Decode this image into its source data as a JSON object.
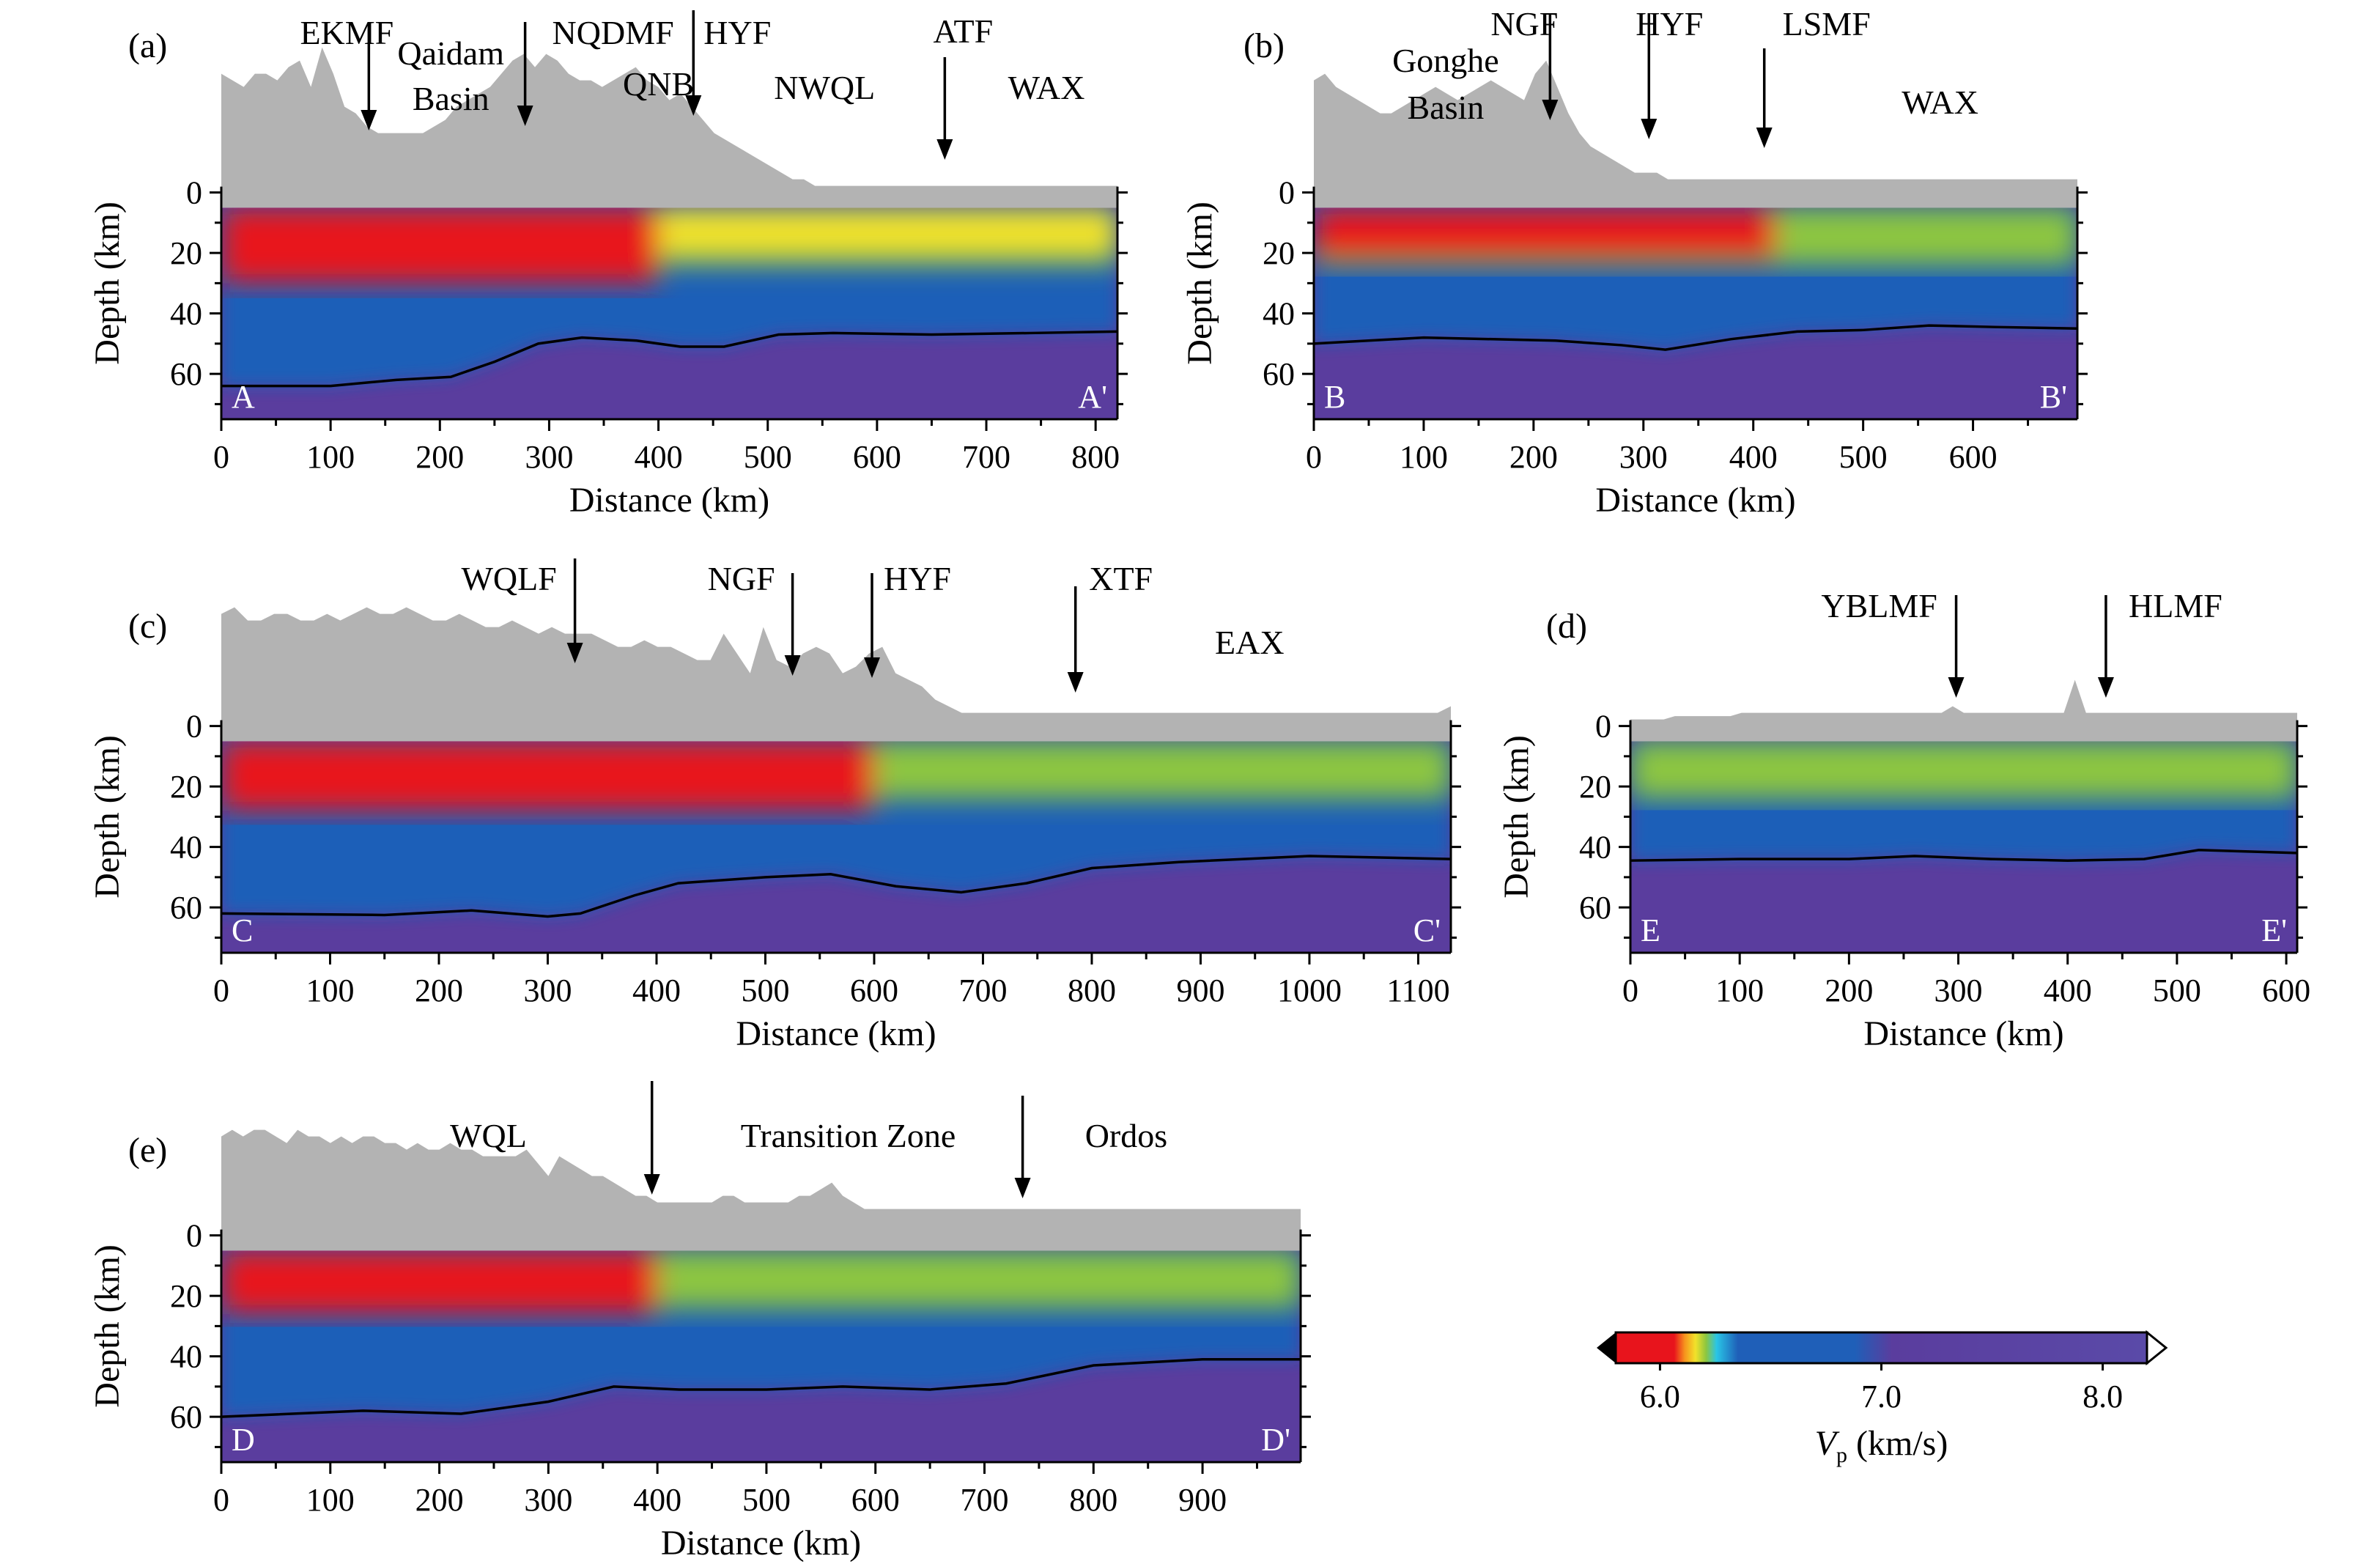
{
  "panels": [
    {
      "id": "a",
      "label": "(a)",
      "ylabel": "Depth (km)",
      "xlabel": "Distance (km)",
      "xmax": 820,
      "xticks": [
        0,
        100,
        200,
        300,
        400,
        500,
        600,
        700,
        800
      ],
      "yticks": [
        0,
        20,
        40,
        60
      ],
      "start": "A",
      "end": "A'",
      "topo": [
        18,
        17,
        16,
        18,
        18,
        17,
        19,
        20,
        16,
        22,
        18,
        13,
        12,
        10,
        9,
        9,
        9,
        9,
        9,
        10,
        11,
        13,
        14,
        15,
        16,
        18,
        20,
        21,
        19,
        21,
        20,
        18,
        17,
        17,
        16,
        17,
        18,
        19,
        17,
        16,
        14,
        15,
        13,
        11,
        9,
        8,
        7,
        6,
        5,
        4,
        3,
        2,
        2,
        1,
        1,
        1,
        1,
        1,
        1,
        1,
        1,
        1,
        1,
        1,
        1,
        1,
        1,
        1,
        1,
        1,
        1,
        1,
        1,
        1,
        1,
        1,
        1,
        1,
        1,
        1,
        1
      ],
      "moho": [
        [
          0,
          64
        ],
        [
          100,
          64
        ],
        [
          160,
          62
        ],
        [
          210,
          61
        ],
        [
          250,
          56
        ],
        [
          290,
          50
        ],
        [
          330,
          48
        ],
        [
          380,
          49
        ],
        [
          420,
          51
        ],
        [
          460,
          51
        ],
        [
          510,
          47
        ],
        [
          560,
          46.5
        ],
        [
          650,
          47
        ],
        [
          740,
          46.5
        ],
        [
          820,
          46
        ]
      ],
      "velocity_features": [
        {
          "x": [
            0,
            400
          ],
          "z": [
            5,
            30
          ],
          "vp": 6.0
        },
        {
          "x": [
            400,
            820
          ],
          "z": [
            5,
            20
          ],
          "vp": 6.2
        },
        {
          "x": [
            0,
            820
          ],
          "z": [
            30,
            48
          ],
          "vp": 6.6
        },
        {
          "x": [
            0,
            820
          ],
          "z": [
            48,
            70
          ],
          "vp": 7.6
        }
      ],
      "annotations": [
        {
          "text": "EKMF",
          "x": 135,
          "arrow": true
        },
        {
          "text": "Qaidam",
          "x": 210,
          "arrow": false
        },
        {
          "text": "Basin",
          "x": 210,
          "arrow": false
        },
        {
          "text": "NQDMF",
          "x": 278,
          "arrow": true
        },
        {
          "text": "QNB",
          "x": 400,
          "arrow": false
        },
        {
          "text": "HYF",
          "x": 432,
          "arrow": true
        },
        {
          "text": "NWQL",
          "x": 552,
          "arrow": false
        },
        {
          "text": "ATF",
          "x": 662,
          "arrow": true
        },
        {
          "text": "WAX",
          "x": 755,
          "arrow": false
        }
      ]
    },
    {
      "id": "b",
      "label": "(b)",
      "ylabel": "Depth (km)",
      "xlabel": "Distance (km)",
      "xmax": 695,
      "xticks": [
        0,
        100,
        200,
        300,
        400,
        500,
        600
      ],
      "yticks": [
        0,
        20,
        40,
        60
      ],
      "start": "B",
      "end": "B'",
      "topo": [
        17,
        18,
        16,
        15,
        14,
        13,
        12,
        12,
        13,
        14,
        15,
        16,
        15,
        14,
        15,
        16,
        17,
        16,
        15,
        14,
        18,
        20,
        16,
        12,
        9,
        7,
        6,
        5,
        4,
        3,
        3,
        3,
        2,
        2,
        2,
        2,
        2,
        2,
        2,
        2,
        2,
        2,
        2,
        2,
        2,
        2,
        2,
        2,
        2,
        2,
        2,
        2,
        2,
        2,
        2,
        2,
        2,
        2,
        2,
        2,
        2,
        2,
        2,
        2,
        2,
        2,
        2,
        2,
        2,
        2
      ],
      "moho": [
        [
          0,
          50
        ],
        [
          100,
          48
        ],
        [
          220,
          49
        ],
        [
          280,
          50.5
        ],
        [
          320,
          52
        ],
        [
          380,
          48.5
        ],
        [
          440,
          46
        ],
        [
          500,
          45.5
        ],
        [
          560,
          44
        ],
        [
          620,
          44.5
        ],
        [
          695,
          45
        ]
      ],
      "velocity_features": [
        {
          "x": [
            0,
            420
          ],
          "z": [
            5,
            22
          ],
          "vp": 6.0
        },
        {
          "x": [
            0,
            695
          ],
          "z": [
            22,
            48
          ],
          "vp": 6.6
        },
        {
          "x": [
            0,
            695
          ],
          "z": [
            48,
            70
          ],
          "vp": 7.6
        }
      ],
      "annotations": [
        {
          "text": "NGF",
          "x": 215,
          "arrow": true
        },
        {
          "text": "Gonghe",
          "x": 120,
          "arrow": false
        },
        {
          "text": "Basin",
          "x": 120,
          "arrow": false
        },
        {
          "text": "HYF",
          "x": 305,
          "arrow": true
        },
        {
          "text": "LSMF",
          "x": 410,
          "arrow": true
        },
        {
          "text": "WAX",
          "x": 570,
          "arrow": false
        }
      ]
    },
    {
      "id": "c",
      "label": "(c)",
      "ylabel": "Depth (km)",
      "xlabel": "Distance (km)",
      "xmax": 1130,
      "xticks": [
        0,
        100,
        200,
        300,
        400,
        500,
        600,
        700,
        800,
        900,
        1000,
        1100
      ],
      "yticks": [
        0,
        20,
        40,
        60
      ],
      "start": "C",
      "end": "C'",
      "topo": [
        17,
        18,
        16,
        16,
        17,
        17,
        16,
        16,
        17,
        16,
        17,
        18,
        17,
        17,
        18,
        17,
        16,
        16,
        17,
        16,
        15,
        15,
        16,
        15,
        14,
        15,
        14,
        14,
        14,
        13,
        12,
        12,
        13,
        12,
        12,
        11,
        10,
        10,
        14,
        11,
        8,
        15,
        10,
        9,
        11,
        12,
        11,
        8,
        9,
        11,
        12,
        8,
        7,
        6,
        4,
        3,
        2,
        2,
        2,
        2,
        2,
        2,
        2,
        2,
        2,
        2,
        2,
        2,
        2,
        2,
        2,
        2,
        2,
        2,
        2,
        2,
        2,
        2,
        2,
        2,
        2,
        2,
        2,
        2,
        2,
        2,
        2,
        2,
        2,
        2,
        2,
        2,
        2,
        3
      ],
      "moho": [
        [
          0,
          62
        ],
        [
          150,
          62.5
        ],
        [
          230,
          61
        ],
        [
          300,
          63
        ],
        [
          330,
          62
        ],
        [
          380,
          56
        ],
        [
          420,
          52
        ],
        [
          500,
          50
        ],
        [
          560,
          49
        ],
        [
          620,
          53
        ],
        [
          680,
          55
        ],
        [
          740,
          52
        ],
        [
          800,
          47
        ],
        [
          880,
          45
        ],
        [
          1000,
          43
        ],
        [
          1130,
          44
        ]
      ],
      "velocity_features": [
        {
          "x": [
            0,
            600
          ],
          "z": [
            5,
            28
          ],
          "vp": 6.0
        },
        {
          "x": [
            0,
            1130
          ],
          "z": [
            28,
            50
          ],
          "vp": 6.6
        },
        {
          "x": [
            0,
            1130
          ],
          "z": [
            50,
            70
          ],
          "vp": 7.6
        }
      ],
      "annotations": [
        {
          "text": "WQLF",
          "x": 325,
          "arrow": true
        },
        {
          "text": "NGF",
          "x": 525,
          "arrow": true
        },
        {
          "text": "HYF",
          "x": 598,
          "arrow": true
        },
        {
          "text": "XTF",
          "x": 785,
          "arrow": true
        },
        {
          "text": "EAX",
          "x": 945,
          "arrow": false
        }
      ]
    },
    {
      "id": "d",
      "label": "(d)",
      "ylabel": "Depth (km)",
      "xlabel": "Distance (km)",
      "xmax": 610,
      "xticks": [
        0,
        100,
        200,
        300,
        400,
        500,
        600
      ],
      "yticks": [
        0,
        20,
        40,
        60
      ],
      "start": "E",
      "end": "E'",
      "topo": [
        1,
        1,
        1,
        1,
        1.5,
        1.5,
        1.5,
        1.5,
        1.5,
        1.5,
        2,
        2,
        2,
        2,
        2,
        2,
        2,
        2,
        2,
        2,
        2,
        2,
        2,
        2,
        2,
        2,
        2,
        2,
        2,
        3,
        2,
        2,
        2,
        2,
        2,
        2,
        2,
        2,
        2,
        2,
        7,
        2,
        2,
        2,
        2,
        2,
        2,
        2,
        2,
        2,
        2,
        2,
        2,
        2,
        2,
        2,
        2,
        2,
        2,
        2,
        2
      ],
      "moho": [
        [
          0,
          44.5
        ],
        [
          100,
          44
        ],
        [
          200,
          44
        ],
        [
          260,
          43
        ],
        [
          330,
          44
        ],
        [
          400,
          44.5
        ],
        [
          470,
          44
        ],
        [
          520,
          41
        ],
        [
          610,
          42
        ]
      ],
      "velocity_features": [
        {
          "x": [
            0,
            610
          ],
          "z": [
            5,
            20
          ],
          "vp": 6.3
        },
        {
          "x": [
            0,
            610
          ],
          "z": [
            20,
            44
          ],
          "vp": 6.6
        },
        {
          "x": [
            0,
            610
          ],
          "z": [
            44,
            70
          ],
          "vp": 7.6
        }
      ],
      "annotations": [
        {
          "text": "YBLMF",
          "x": 298,
          "arrow": true
        },
        {
          "text": "HLMF",
          "x": 435,
          "arrow": true
        }
      ]
    },
    {
      "id": "e",
      "label": "(e)",
      "ylabel": "Depth (km)",
      "xlabel": "Distance (km)",
      "xmax": 990,
      "xticks": [
        0,
        100,
        200,
        300,
        400,
        500,
        600,
        700,
        800,
        900
      ],
      "yticks": [
        0,
        20,
        40,
        60
      ],
      "start": "D",
      "end": "D'",
      "topo": [
        15,
        16,
        15,
        16,
        16,
        15,
        14,
        16,
        15,
        15,
        14,
        15,
        14,
        15,
        15,
        14,
        14,
        13,
        14,
        13,
        13,
        14,
        13,
        13,
        12,
        12,
        12,
        12,
        13,
        11,
        9,
        12,
        11,
        10,
        9,
        9,
        8,
        7,
        6,
        6,
        5,
        5,
        5,
        5,
        5,
        5,
        6,
        6,
        5,
        5,
        5,
        5,
        5,
        6,
        6,
        7,
        8,
        6,
        5,
        4,
        4,
        4,
        4,
        4,
        4,
        4,
        4,
        4,
        4,
        4,
        4,
        4,
        4,
        4,
        4,
        4,
        4,
        4,
        4,
        4,
        4,
        4,
        4,
        4,
        4,
        4,
        4,
        4,
        4,
        4,
        4,
        4,
        4,
        4,
        4,
        4,
        4,
        4,
        4,
        4
      ],
      "moho": [
        [
          0,
          60
        ],
        [
          130,
          58
        ],
        [
          220,
          59
        ],
        [
          300,
          55
        ],
        [
          360,
          50
        ],
        [
          420,
          51
        ],
        [
          500,
          51
        ],
        [
          570,
          50
        ],
        [
          650,
          51
        ],
        [
          720,
          49
        ],
        [
          800,
          43
        ],
        [
          900,
          41
        ],
        [
          990,
          41
        ]
      ],
      "velocity_features": [
        {
          "x": [
            0,
            400
          ],
          "z": [
            5,
            26
          ],
          "vp": 6.0
        },
        {
          "x": [
            0,
            990
          ],
          "z": [
            26,
            50
          ],
          "vp": 6.6
        },
        {
          "x": [
            0,
            990
          ],
          "z": [
            50,
            70
          ],
          "vp": 7.6
        }
      ],
      "annotations": [
        {
          "text": "WQL",
          "x": 245,
          "arrow": false
        },
        {
          "text": "",
          "x": 395,
          "arrow": true
        },
        {
          "text": "Transition Zone",
          "x": 575,
          "arrow": false
        },
        {
          "text": "",
          "x": 735,
          "arrow": true
        },
        {
          "text": "Ordos",
          "x": 830,
          "arrow": false
        }
      ]
    }
  ],
  "colorbar": {
    "ticks": [
      "6.0",
      "7.0",
      "8.0"
    ],
    "min": 5.8,
    "max": 8.2,
    "label_main": "V",
    "label_sub": "p",
    "label_unit": " (km/s)",
    "colors": {
      "red": "#e8141c",
      "orange": "#f7941d",
      "yellow": "#f2e22a",
      "green": "#8dc63f",
      "cyan": "#29c5e6",
      "blue": "#1f5fb8",
      "purple": "#5a3d9e",
      "grey": "#b3b3b3"
    }
  }
}
